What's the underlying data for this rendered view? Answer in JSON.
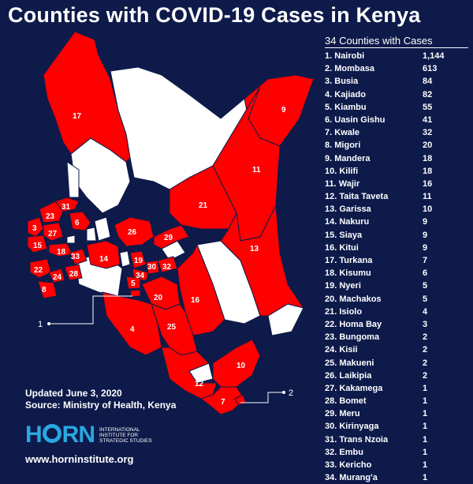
{
  "title": "Counties with COVID-19 Cases in Kenya",
  "legend": {
    "title": "34 Counties with Cases",
    "entries": [
      {
        "rank": "1.",
        "county": "Nairobi",
        "cases": "1,144"
      },
      {
        "rank": "2.",
        "county": "Mombasa",
        "cases": "613"
      },
      {
        "rank": "3.",
        "county": "Busia",
        "cases": "84"
      },
      {
        "rank": "4.",
        "county": "Kajiado",
        "cases": "82"
      },
      {
        "rank": "5.",
        "county": "Kiambu",
        "cases": "55"
      },
      {
        "rank": "6.",
        "county": "Uasin Gishu",
        "cases": "41"
      },
      {
        "rank": "7.",
        "county": "Kwale",
        "cases": "32"
      },
      {
        "rank": "8.",
        "county": "Migori",
        "cases": "20"
      },
      {
        "rank": "9.",
        "county": "Mandera",
        "cases": "18"
      },
      {
        "rank": "10.",
        "county": "Kilifi",
        "cases": "18"
      },
      {
        "rank": "11.",
        "county": "Wajir",
        "cases": "16"
      },
      {
        "rank": "12.",
        "county": "Taita Taveta",
        "cases": "11"
      },
      {
        "rank": "13.",
        "county": "Garissa",
        "cases": "10"
      },
      {
        "rank": "14.",
        "county": "Nakuru",
        "cases": "9"
      },
      {
        "rank": "15.",
        "county": "Siaya",
        "cases": "9"
      },
      {
        "rank": "16.",
        "county": "Kitui",
        "cases": "9"
      },
      {
        "rank": "17.",
        "county": "Turkana",
        "cases": "7"
      },
      {
        "rank": "18.",
        "county": "Kisumu",
        "cases": "6"
      },
      {
        "rank": "19.",
        "county": "Nyeri",
        "cases": "5"
      },
      {
        "rank": "20.",
        "county": "Machakos",
        "cases": "5"
      },
      {
        "rank": "21.",
        "county": "Isiolo",
        "cases": "4"
      },
      {
        "rank": "22.",
        "county": "Homa Bay",
        "cases": "3"
      },
      {
        "rank": "23.",
        "county": "Bungoma",
        "cases": "2"
      },
      {
        "rank": "24.",
        "county": "Kisii",
        "cases": "2"
      },
      {
        "rank": "25.",
        "county": "Makueni",
        "cases": "2"
      },
      {
        "rank": "26.",
        "county": "Laikipia",
        "cases": "2"
      },
      {
        "rank": "27.",
        "county": "Kakamega",
        "cases": "1"
      },
      {
        "rank": "28.",
        "county": "Bomet",
        "cases": "1"
      },
      {
        "rank": "29.",
        "county": "Meru",
        "cases": "1"
      },
      {
        "rank": "30.",
        "county": "Kirinyaga",
        "cases": "1"
      },
      {
        "rank": "31.",
        "county": "Trans Nzoia",
        "cases": "1"
      },
      {
        "rank": "32.",
        "county": "Embu",
        "cases": "1"
      },
      {
        "rank": "33.",
        "county": "Kericho",
        "cases": "1"
      },
      {
        "rank": "34.",
        "county": "Murang'a",
        "cases": "1"
      }
    ]
  },
  "map": {
    "county_labels": [
      "1",
      "2",
      "3",
      "4",
      "5",
      "6",
      "7",
      "8",
      "9",
      "10",
      "11",
      "12",
      "13",
      "14",
      "15",
      "16",
      "17",
      "18",
      "19",
      "20",
      "21",
      "22",
      "23",
      "24",
      "25",
      "26",
      "27",
      "28",
      "29",
      "30",
      "31",
      "32",
      "33",
      "34"
    ],
    "callouts": [
      "1",
      "2"
    ],
    "colors": {
      "affected": "#ff0000",
      "unaffected": "#ffffff",
      "background": "#0d1a4a"
    }
  },
  "footer": {
    "updated": "Updated June 3, 2020",
    "source": "Source: Ministry of Health, Kenya",
    "logo_word_1": "H",
    "logo_word_2": "RN",
    "logo_subtitle": "INTERNATIONAL INSTITUTE FOR STRATEGIC STUDIES",
    "website": "www.horninstitute.org"
  }
}
